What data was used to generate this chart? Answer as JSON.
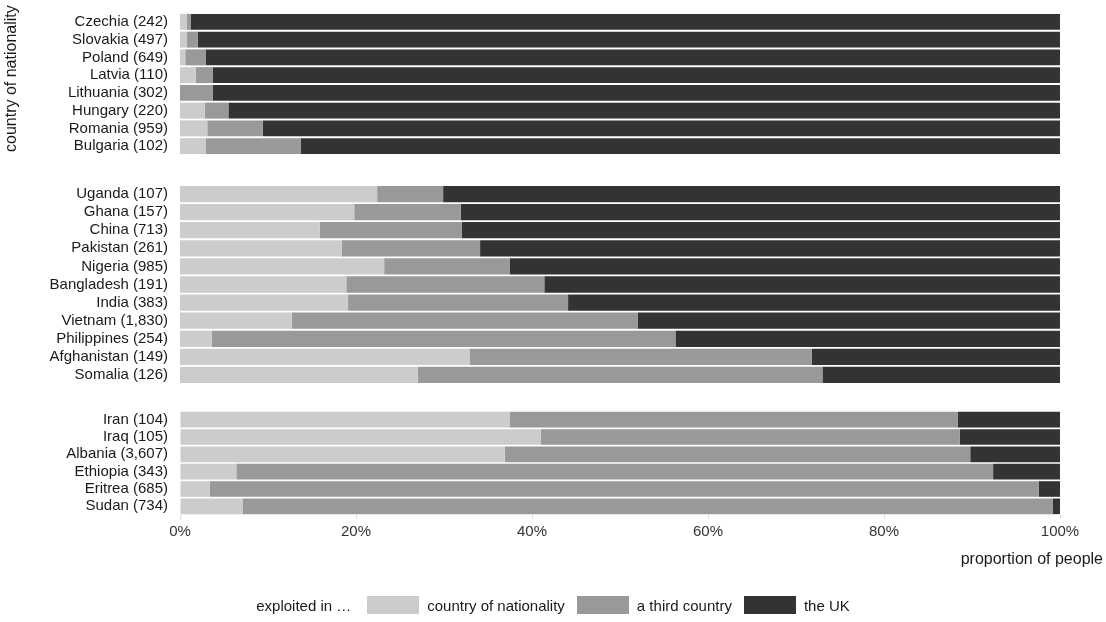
{
  "chart_data": [
    {
      "type": "bar",
      "orientation": "horizontal",
      "stacked": true,
      "ylabel": "country of nationality",
      "tick_labels": "y",
      "categories": [
        "Czechia (242)",
        "Slovakia (497)",
        "Poland (649)",
        "Latvia (110)",
        "Lithuania (302)",
        "Hungary (220)",
        "Romania (959)",
        "Bulgaria (102)"
      ],
      "xlim": [
        0,
        100
      ],
      "series": [
        {
          "color": "#cccccc",
          "values": [
            0.8,
            0.8,
            0.6,
            1.8,
            0,
            2.8,
            3.1,
            2.9
          ]
        },
        {
          "color": "#999999",
          "values": [
            0.4,
            1.2,
            2.3,
            1.9,
            3.7,
            2.7,
            6.3,
            10.8
          ]
        },
        {
          "color": "#333333",
          "values": [
            98.8,
            98.0,
            97.1,
            96.3,
            96.3,
            94.5,
            90.6,
            86.3
          ]
        }
      ]
    },
    {
      "type": "bar",
      "orientation": "horizontal",
      "stacked": true,
      "tick_labels": "y",
      "categories": [
        "Uganda (107)",
        "Ghana (157)",
        "China (713)",
        "Pakistan (261)",
        "Nigeria (985)",
        "Bangladesh (191)",
        "India (383)",
        "Vietnam (1,830)",
        "Philippines (254)",
        "Afghanistan (149)",
        "Somalia (126)"
      ],
      "xlim": [
        0,
        100
      ],
      "series": [
        {
          "color": "#cccccc",
          "values": [
            22.4,
            19.8,
            15.9,
            18.4,
            23.2,
            18.9,
            19.1,
            12.7,
            3.6,
            32.9,
            27.0
          ]
        },
        {
          "color": "#999999",
          "values": [
            7.5,
            12.1,
            16.1,
            15.7,
            14.3,
            22.5,
            25.0,
            39.3,
            52.7,
            38.9,
            46.0
          ]
        },
        {
          "color": "#333333",
          "values": [
            70.1,
            68.1,
            68.0,
            65.9,
            62.5,
            58.6,
            55.9,
            48.0,
            43.7,
            28.2,
            27.0
          ]
        }
      ]
    },
    {
      "type": "bar",
      "orientation": "horizontal",
      "stacked": true,
      "xlabel": "proportion of people",
      "legend": "bottom",
      "legend_title": "exploited in …",
      "categories": [
        "Iran (104)",
        "Iraq (105)",
        "Albania (3,607)",
        "Ethiopia (343)",
        "Eritrea (685)",
        "Sudan (734)"
      ],
      "xlim": [
        0,
        100
      ],
      "xticks": [
        {
          "value": 0,
          "label": "0%"
        },
        {
          "value": 20,
          "label": "20%"
        },
        {
          "value": 40,
          "label": "40%"
        },
        {
          "value": 60,
          "label": "60%"
        },
        {
          "value": 80,
          "label": "80%"
        },
        {
          "value": 100,
          "label": "100%"
        }
      ],
      "series": [
        {
          "name": "country of nationality",
          "color": "#cccccc",
          "values": [
            37.5,
            41.0,
            36.9,
            6.4,
            3.4,
            7.1
          ]
        },
        {
          "name": "a third country",
          "color": "#999999",
          "values": [
            50.9,
            47.6,
            52.9,
            86.0,
            94.2,
            92.1
          ]
        },
        {
          "name": "the UK",
          "color": "#333333",
          "values": [
            11.6,
            11.4,
            10.2,
            7.6,
            2.4,
            0.8
          ]
        }
      ]
    }
  ]
}
